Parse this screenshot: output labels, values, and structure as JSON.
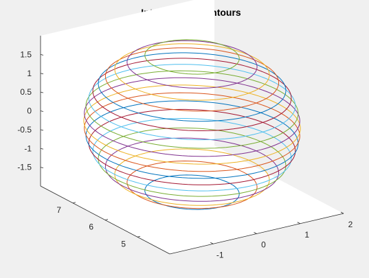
{
  "chart_data": {
    "type": "line",
    "title": "Intersection Contours",
    "xlabel": "",
    "ylabel": "",
    "zlabel": "",
    "xlim": [
      -2,
      2
    ],
    "ylim": [
      4,
      8
    ],
    "zlim": [
      -2,
      2
    ],
    "x_ticks": [
      "-1",
      "0",
      "1",
      "2"
    ],
    "y_ticks": [
      "5",
      "6",
      "7"
    ],
    "z_ticks": [
      "-1.5",
      "-1",
      "-0.5",
      "0",
      "0.5",
      "1",
      "1.5"
    ],
    "grid": false,
    "view": {
      "azimuth": -37.5,
      "elevation": 30
    },
    "surface": {
      "shape": "ellipsoid",
      "center": [
        0,
        6,
        0
      ],
      "radii": [
        2,
        2,
        2
      ]
    },
    "contour_heights": [
      -1.8,
      -1.6,
      -1.4,
      -1.2,
      -1.0,
      -0.8,
      -0.6,
      -0.4,
      -0.2,
      0.0,
      0.2,
      0.4,
      0.6,
      0.8,
      1.0,
      1.2,
      1.4,
      1.6,
      1.8
    ],
    "series_colors": [
      "#0072bd",
      "#d95319",
      "#edb120",
      "#7e2f8e",
      "#77ac30",
      "#4dbeee",
      "#a2142f"
    ]
  }
}
